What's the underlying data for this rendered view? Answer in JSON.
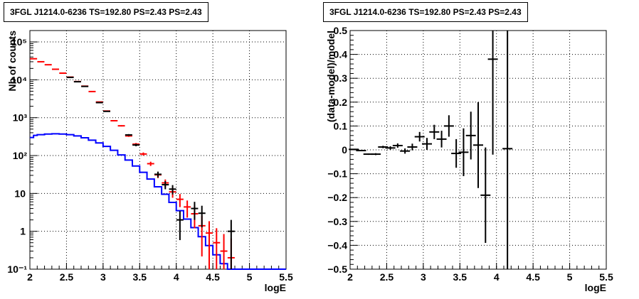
{
  "chart_data": [
    {
      "type": "line",
      "title": "3FGL J1214.0-6236 TS=192.80 PS=2.43 PS=2.43",
      "xlabel": "logE",
      "ylabel": "Nb of counts",
      "yscale": "log",
      "xlim": [
        2,
        5.5
      ],
      "ylim": [
        0.1,
        200000
      ],
      "grid": true,
      "x_ticks": [
        "2",
        "2.5",
        "3",
        "3.5",
        "4",
        "4.5",
        "5",
        "5.5"
      ],
      "y_ticks": [
        "10⁻¹",
        "1",
        "10",
        "10²",
        "10³",
        "10⁴",
        "10⁵"
      ],
      "series": [
        {
          "color": "#ff0000",
          "style": "markers",
          "points": [
            [
              2.05,
              36000
            ],
            [
              2.15,
              30000
            ],
            [
              2.25,
              25000
            ],
            [
              2.35,
              19000
            ],
            [
              2.45,
              15000
            ],
            [
              2.55,
              11800
            ],
            [
              2.65,
              9000
            ],
            [
              2.75,
              6800
            ],
            [
              2.85,
              4900
            ],
            [
              2.95,
              2600
            ],
            [
              3.05,
              1500
            ],
            [
              3.15,
              830
            ],
            [
              3.25,
              610
            ],
            [
              3.35,
              330
            ],
            [
              3.45,
              200
            ],
            [
              3.55,
              110
            ],
            [
              3.65,
              61
            ],
            [
              3.75,
              31
            ],
            [
              3.85,
              19
            ],
            [
              3.95,
              11
            ],
            [
              4.05,
              7
            ],
            [
              4.15,
              4.4
            ],
            [
              4.25,
              2.9
            ],
            [
              4.35,
              1.4
            ],
            [
              4.45,
              0.9
            ],
            [
              4.55,
              0.5
            ],
            [
              4.65,
              0.3
            ],
            [
              4.75,
              0.2
            ]
          ]
        },
        {
          "color": "#000000",
          "style": "markers",
          "points": [
            [
              2.55,
              11600
            ],
            [
              2.65,
              8900
            ],
            [
              2.75,
              6700
            ],
            [
              2.95,
              2500
            ],
            [
              3.05,
              1470
            ],
            [
              3.35,
              350
            ],
            [
              3.45,
              190
            ],
            [
              3.75,
              32
            ],
            [
              3.85,
              17
            ],
            [
              3.95,
              13
            ],
            [
              4.05,
              2
            ],
            [
              4.25,
              4
            ],
            [
              4.35,
              3
            ],
            [
              4.75,
              1
            ]
          ]
        },
        {
          "color": "#0000ff",
          "style": "step",
          "points": [
            [
              2.0,
              300
            ],
            [
              2.05,
              340
            ],
            [
              2.1,
              355
            ],
            [
              2.2,
              370
            ],
            [
              2.3,
              375
            ],
            [
              2.4,
              370
            ],
            [
              2.5,
              355
            ],
            [
              2.6,
              330
            ],
            [
              2.7,
              295
            ],
            [
              2.8,
              255
            ],
            [
              2.9,
              215
            ],
            [
              3.0,
              175
            ],
            [
              3.1,
              138
            ],
            [
              3.2,
              104
            ],
            [
              3.3,
              76
            ],
            [
              3.4,
              53
            ],
            [
              3.5,
              36
            ],
            [
              3.6,
              24
            ],
            [
              3.7,
              15
            ],
            [
              3.8,
              9.5
            ],
            [
              3.9,
              5.8
            ],
            [
              4.0,
              3.5
            ],
            [
              4.1,
              2.1
            ],
            [
              4.2,
              1.25
            ],
            [
              4.3,
              0.72
            ],
            [
              4.4,
              0.42
            ],
            [
              4.5,
              0.24
            ],
            [
              4.6,
              0.14
            ],
            [
              4.7,
              0.1
            ],
            [
              5.5,
              0.1
            ]
          ]
        }
      ]
    },
    {
      "type": "scatter",
      "title": "3FGL J1214.0-6236 TS=192.80 PS=2.43 PS=2.43",
      "xlabel": "logE",
      "ylabel": "(data-model)/model",
      "xlim": [
        2,
        5.5
      ],
      "ylim": [
        -0.5,
        0.5
      ],
      "grid": true,
      "x_ticks": [
        "2",
        "2.5",
        "3",
        "3.5",
        "4",
        "4.5",
        "5",
        "5.5"
      ],
      "y_ticks": [
        "−0.5",
        "−0.4",
        "−0.3",
        "−0.2",
        "−0.1",
        "0",
        "0.1",
        "0.2",
        "0.3",
        "0.4",
        "0.5"
      ],
      "points": [
        {
          "x": 2.05,
          "y": 0.002,
          "err": 0.002
        },
        {
          "x": 2.15,
          "y": -0.003,
          "err": 0.003
        },
        {
          "x": 2.25,
          "y": -0.018,
          "err": 0.003
        },
        {
          "x": 2.35,
          "y": -0.018,
          "err": 0.004
        },
        {
          "x": 2.45,
          "y": 0.012,
          "err": 0.005
        },
        {
          "x": 2.55,
          "y": 0.008,
          "err": 0.007
        },
        {
          "x": 2.65,
          "y": 0.018,
          "err": 0.009
        },
        {
          "x": 2.75,
          "y": -0.005,
          "err": 0.011
        },
        {
          "x": 2.85,
          "y": 0.012,
          "err": 0.014
        },
        {
          "x": 2.95,
          "y": 0.055,
          "err": 0.02
        },
        {
          "x": 3.05,
          "y": 0.025,
          "err": 0.025
        },
        {
          "x": 3.15,
          "y": 0.075,
          "err": 0.03
        },
        {
          "x": 3.25,
          "y": 0.045,
          "err": 0.035
        },
        {
          "x": 3.35,
          "y": 0.1,
          "err": 0.045
        },
        {
          "x": 3.45,
          "y": -0.015,
          "err": 0.06
        },
        {
          "x": 3.55,
          "y": -0.01,
          "err": 0.1
        },
        {
          "x": 3.65,
          "y": 0.06,
          "err": 0.1
        },
        {
          "x": 3.75,
          "y": 0.02,
          "err": 0.18
        },
        {
          "x": 3.85,
          "y": -0.19,
          "err": 0.2
        },
        {
          "x": 3.95,
          "y": 0.38,
          "err": 0.4
        },
        {
          "x": 4.15,
          "y": 0.005,
          "err": 0.6
        }
      ]
    }
  ]
}
